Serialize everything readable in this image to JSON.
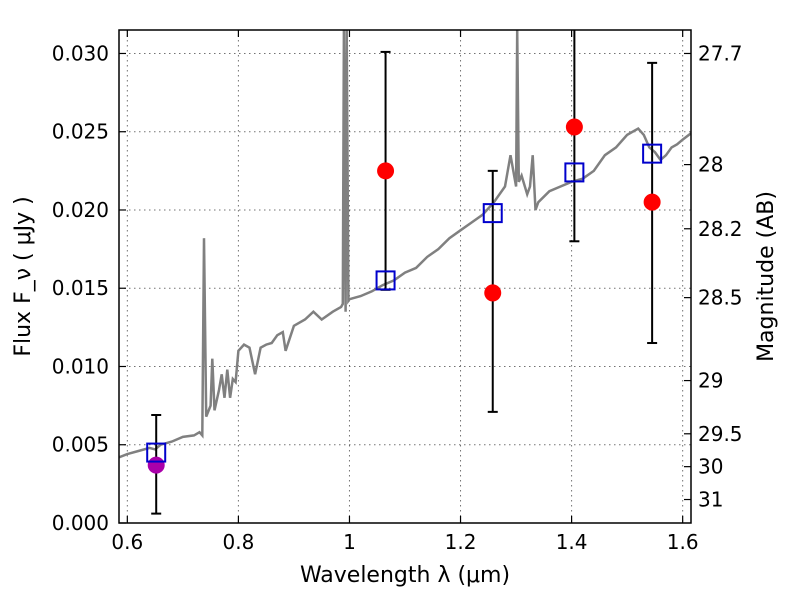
{
  "chart_data": {
    "type": "scatter",
    "xlabel": "Wavelength  λ (μm)",
    "ylabel": "Flux  F_ν  ( μJy )",
    "ylabel_right": "Magnitude (AB)",
    "xlim": [
      0.585,
      1.615
    ],
    "ylim": [
      0.0,
      0.0315
    ],
    "x_ticks": [
      0.6,
      0.8,
      1.0,
      1.2,
      1.4,
      1.6
    ],
    "x_tick_labels": [
      "0.6",
      "0.8",
      "1",
      "1.2",
      "1.4",
      "1.6"
    ],
    "y_ticks": [
      0.0,
      0.005,
      0.01,
      0.015,
      0.02,
      0.025,
      0.03
    ],
    "y_tick_labels": [
      "0.000",
      "0.005",
      "0.010",
      "0.015",
      "0.020",
      "0.025",
      "0.030"
    ],
    "right_ticks": [
      {
        "label": "27.7",
        "flux": 0.03
      },
      {
        "label": "28",
        "flux": 0.0229
      },
      {
        "label": "28.2",
        "flux": 0.0188
      },
      {
        "label": "28.5",
        "flux": 0.0144
      },
      {
        "label": "29",
        "flux": 0.0091
      },
      {
        "label": "29.5",
        "flux": 0.0057
      },
      {
        "label": "30",
        "flux": 0.0036
      },
      {
        "label": "31",
        "flux": 0.0015
      }
    ],
    "grid": true,
    "colors": {
      "model": "#808080",
      "photometry": "#ff0000",
      "optical": "#aa00aa",
      "synthetic": "#0000cc",
      "errorbar": "#000000"
    },
    "model_spectrum": [
      [
        0.585,
        0.0042
      ],
      [
        0.6,
        0.0044
      ],
      [
        0.62,
        0.0046
      ],
      [
        0.64,
        0.0048
      ],
      [
        0.65,
        0.0047
      ],
      [
        0.66,
        0.005
      ],
      [
        0.68,
        0.0052
      ],
      [
        0.7,
        0.0055
      ],
      [
        0.72,
        0.0056
      ],
      [
        0.73,
        0.0058
      ],
      [
        0.735,
        0.0056
      ],
      [
        0.738,
        0.0182
      ],
      [
        0.742,
        0.0068
      ],
      [
        0.75,
        0.0075
      ],
      [
        0.753,
        0.0105
      ],
      [
        0.757,
        0.0072
      ],
      [
        0.765,
        0.0085
      ],
      [
        0.77,
        0.0095
      ],
      [
        0.775,
        0.008
      ],
      [
        0.78,
        0.0098
      ],
      [
        0.785,
        0.008
      ],
      [
        0.79,
        0.0092
      ],
      [
        0.795,
        0.009
      ],
      [
        0.8,
        0.011
      ],
      [
        0.81,
        0.0114
      ],
      [
        0.82,
        0.0112
      ],
      [
        0.83,
        0.0095
      ],
      [
        0.84,
        0.0112
      ],
      [
        0.85,
        0.0114
      ],
      [
        0.86,
        0.0115
      ],
      [
        0.87,
        0.012
      ],
      [
        0.88,
        0.0122
      ],
      [
        0.885,
        0.011
      ],
      [
        0.9,
        0.0126
      ],
      [
        0.92,
        0.013
      ],
      [
        0.935,
        0.0135
      ],
      [
        0.95,
        0.013
      ],
      [
        0.97,
        0.0135
      ],
      [
        0.985,
        0.0138
      ],
      [
        0.988,
        0.014
      ],
      [
        0.99,
        0.0315
      ],
      [
        0.993,
        0.0135
      ],
      [
        0.995,
        0.0315
      ],
      [
        0.998,
        0.0142
      ],
      [
        1.0,
        0.0143
      ],
      [
        1.02,
        0.0145
      ],
      [
        1.04,
        0.0148
      ],
      [
        1.06,
        0.0152
      ],
      [
        1.08,
        0.0155
      ],
      [
        1.1,
        0.016
      ],
      [
        1.12,
        0.0163
      ],
      [
        1.14,
        0.017
      ],
      [
        1.16,
        0.0175
      ],
      [
        1.18,
        0.0182
      ],
      [
        1.2,
        0.0187
      ],
      [
        1.22,
        0.0192
      ],
      [
        1.24,
        0.0197
      ],
      [
        1.26,
        0.0205
      ],
      [
        1.28,
        0.0215
      ],
      [
        1.29,
        0.0235
      ],
      [
        1.3,
        0.0215
      ],
      [
        1.302,
        0.0315
      ],
      [
        1.305,
        0.0218
      ],
      [
        1.31,
        0.0222
      ],
      [
        1.32,
        0.021
      ],
      [
        1.325,
        0.0215
      ],
      [
        1.33,
        0.0235
      ],
      [
        1.335,
        0.02
      ],
      [
        1.34,
        0.0205
      ],
      [
        1.36,
        0.0212
      ],
      [
        1.38,
        0.0215
      ],
      [
        1.4,
        0.0218
      ],
      [
        1.42,
        0.022
      ],
      [
        1.44,
        0.0225
      ],
      [
        1.46,
        0.0235
      ],
      [
        1.48,
        0.024
      ],
      [
        1.5,
        0.0248
      ],
      [
        1.52,
        0.0252
      ],
      [
        1.53,
        0.0248
      ],
      [
        1.54,
        0.024
      ],
      [
        1.55,
        0.0237
      ],
      [
        1.56,
        0.0232
      ],
      [
        1.57,
        0.0235
      ],
      [
        1.58,
        0.024
      ],
      [
        1.59,
        0.0242
      ],
      [
        1.6,
        0.0245
      ],
      [
        1.615,
        0.0249
      ]
    ],
    "points": [
      {
        "x": 0.652,
        "y": 0.0037,
        "err_low": 0.0006,
        "err_high": 0.0069,
        "series": "optical"
      },
      {
        "x": 1.065,
        "y": 0.0225,
        "err_low": 0.0149,
        "err_high": 0.0301,
        "series": "photometry"
      },
      {
        "x": 1.258,
        "y": 0.0147,
        "err_low": 0.0071,
        "err_high": 0.0225,
        "series": "photometry"
      },
      {
        "x": 1.405,
        "y": 0.0253,
        "err_low": 0.018,
        "err_high": 0.0315,
        "series": "photometry"
      },
      {
        "x": 1.545,
        "y": 0.0205,
        "err_low": 0.0115,
        "err_high": 0.0294,
        "series": "photometry"
      }
    ],
    "synthetic_points": [
      {
        "x": 0.652,
        "y": 0.0045
      },
      {
        "x": 1.065,
        "y": 0.0155
      },
      {
        "x": 1.258,
        "y": 0.0198
      },
      {
        "x": 1.405,
        "y": 0.0224
      },
      {
        "x": 1.545,
        "y": 0.0236
      }
    ]
  }
}
